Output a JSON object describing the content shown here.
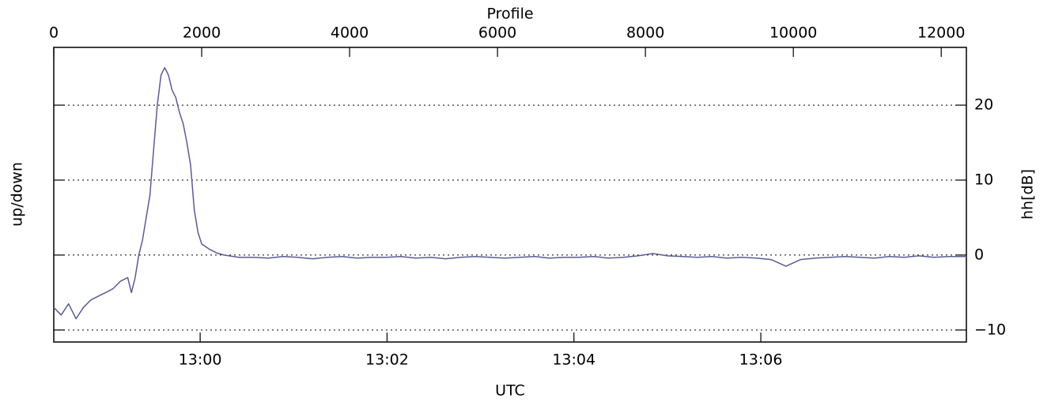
{
  "chart_data": {
    "type": "line",
    "x_label": "Profile",
    "x2_label": "UTC",
    "y_label": "up/down",
    "y2_label": "hh[dB]",
    "xlim": [
      0,
      12340
    ],
    "xticks": [
      0,
      2000,
      4000,
      6000,
      8000,
      10000,
      12000
    ],
    "x2lim": [
      46706,
      47292
    ],
    "x2ticks": [
      {
        "value": 46800,
        "label": "13:00"
      },
      {
        "value": 46920,
        "label": "13:02"
      },
      {
        "value": 47040,
        "label": "13:04"
      },
      {
        "value": 47160,
        "label": "13:06"
      }
    ],
    "y2lim": [
      -11.6,
      27.7
    ],
    "y2ticks": [
      {
        "value": -10,
        "label": "−10"
      },
      0,
      10,
      20
    ],
    "grid": true,
    "x": [
      0,
      100,
      200,
      300,
      400,
      500,
      600,
      700,
      800,
      900,
      1000,
      1050,
      1100,
      1150,
      1200,
      1250,
      1300,
      1350,
      1400,
      1450,
      1500,
      1550,
      1600,
      1650,
      1700,
      1750,
      1800,
      1850,
      1900,
      1950,
      2000,
      2100,
      2200,
      2300,
      2500,
      2700,
      2900,
      3100,
      3300,
      3500,
      3700,
      3900,
      4100,
      4300,
      4500,
      4700,
      4900,
      5100,
      5300,
      5500,
      5700,
      5900,
      6100,
      6300,
      6500,
      6700,
      6900,
      7100,
      7300,
      7500,
      7700,
      7900,
      8100,
      8300,
      8500,
      8700,
      8900,
      9100,
      9300,
      9500,
      9700,
      9900,
      10100,
      10300,
      10500,
      10700,
      10900,
      11100,
      11300,
      11500,
      11700,
      11900,
      12100,
      12300,
      12340
    ],
    "series": [
      {
        "color": "#5b5b96",
        "axis": "y2",
        "values": [
          -7,
          -8,
          -6.5,
          -8.5,
          -7,
          -6,
          -5.5,
          -5,
          -4.5,
          -3.5,
          -3,
          -5,
          -3,
          0,
          2,
          5,
          8,
          14,
          20,
          24,
          25,
          24,
          22,
          21,
          19,
          17.5,
          15,
          12,
          6,
          3,
          1.5,
          0.8,
          0.3,
          0,
          -0.3,
          -0.3,
          -0.4,
          -0.2,
          -0.3,
          -0.5,
          -0.3,
          -0.2,
          -0.4,
          -0.3,
          -0.3,
          -0.2,
          -0.4,
          -0.3,
          -0.5,
          -0.3,
          -0.2,
          -0.3,
          -0.4,
          -0.3,
          -0.2,
          -0.4,
          -0.3,
          -0.3,
          -0.2,
          -0.4,
          -0.3,
          -0.1,
          0.2,
          -0.1,
          -0.2,
          -0.3,
          -0.2,
          -0.4,
          -0.3,
          -0.4,
          -0.6,
          -1.5,
          -0.6,
          -0.4,
          -0.3,
          -0.2,
          -0.3,
          -0.4,
          -0.2,
          -0.3,
          -0.1,
          -0.3,
          -0.2,
          -0.2,
          -0.2
        ]
      }
    ]
  }
}
